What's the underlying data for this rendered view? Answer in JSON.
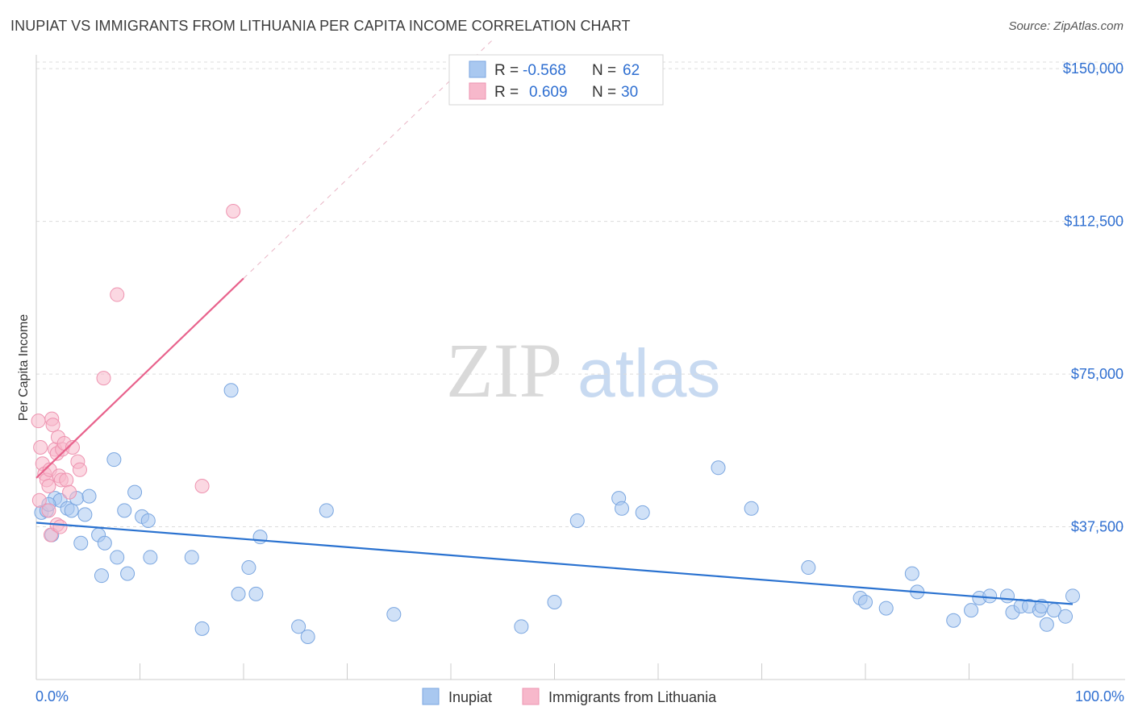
{
  "title": "INUPIAT VS IMMIGRANTS FROM LITHUANIA PER CAPITA INCOME CORRELATION CHART",
  "source": "Source: ZipAtlas.com",
  "watermark": {
    "zip": "ZIP",
    "atlas": "atlas"
  },
  "colors": {
    "inupiat_fill": "#a9c8f0",
    "inupiat_stroke": "#7aa6e0",
    "inupiat_line": "#2a72d0",
    "lithuania_fill": "#f7b8cb",
    "lithuania_stroke": "#ee93b0",
    "lithuania_line": "#e8628c",
    "axis_text": "#2f6fd1",
    "grid": "#dcdcdc"
  },
  "legend": {
    "rows": [
      {
        "r_label": "R =",
        "r_value": "-0.568",
        "n_label": "N =",
        "n_value": "62"
      },
      {
        "r_label": "R =",
        "r_value": "0.609",
        "n_label": "N =",
        "n_value": "30"
      }
    ]
  },
  "bottom_legend": {
    "series1": "Inupiat",
    "series2": "Immigrants from Lithuania"
  },
  "chart_data": {
    "type": "scatter",
    "title": "INUPIAT VS IMMIGRANTS FROM LITHUANIA PER CAPITA INCOME CORRELATION CHART",
    "xlabel": "",
    "ylabel": "Per Capita Income",
    "xlim": [
      0,
      100
    ],
    "ylim": [
      0,
      153000
    ],
    "x_tick_labels": [
      "0.0%",
      "100.0%"
    ],
    "y_ticks": [
      37500,
      75000,
      112500,
      150000
    ],
    "y_tick_labels": [
      "$37,500",
      "$75,000",
      "$112,500",
      "$150,000"
    ],
    "grid": true,
    "series": [
      {
        "name": "Inupiat",
        "trend": {
          "x0": 0,
          "y0": 38500,
          "x1": 100,
          "y1": 18500
        },
        "points": [
          [
            0.5,
            41000
          ],
          [
            1.0,
            41500
          ],
          [
            1.5,
            35500
          ],
          [
            1.8,
            44500
          ],
          [
            2.3,
            44000
          ],
          [
            3.0,
            42000
          ],
          [
            3.4,
            41500
          ],
          [
            3.9,
            44500
          ],
          [
            4.3,
            33500
          ],
          [
            4.7,
            40500
          ],
          [
            5.1,
            45000
          ],
          [
            6.0,
            35500
          ],
          [
            6.3,
            25500
          ],
          [
            6.6,
            33500
          ],
          [
            7.5,
            54000
          ],
          [
            7.8,
            30000
          ],
          [
            8.5,
            41500
          ],
          [
            8.8,
            26000
          ],
          [
            9.5,
            46000
          ],
          [
            10.2,
            40000
          ],
          [
            10.8,
            39000
          ],
          [
            11.0,
            30000
          ],
          [
            15.0,
            30000
          ],
          [
            16.0,
            12500
          ],
          [
            18.8,
            71000
          ],
          [
            19.5,
            21000
          ],
          [
            20.5,
            27500
          ],
          [
            21.2,
            21000
          ],
          [
            21.6,
            35000
          ],
          [
            25.3,
            13000
          ],
          [
            26.2,
            10500
          ],
          [
            28.0,
            41500
          ],
          [
            34.5,
            16000
          ],
          [
            46.8,
            13000
          ],
          [
            50.0,
            19000
          ],
          [
            52.2,
            39000
          ],
          [
            56.2,
            44500
          ],
          [
            56.5,
            42000
          ],
          [
            58.5,
            41000
          ],
          [
            65.8,
            52000
          ],
          [
            69.0,
            42000
          ],
          [
            74.5,
            27500
          ],
          [
            79.5,
            20000
          ],
          [
            80.0,
            19000
          ],
          [
            82.0,
            17500
          ],
          [
            84.5,
            26000
          ],
          [
            85.0,
            21500
          ],
          [
            88.5,
            14500
          ],
          [
            90.2,
            17000
          ],
          [
            91.0,
            20000
          ],
          [
            92.0,
            20500
          ],
          [
            93.7,
            20500
          ],
          [
            94.2,
            16500
          ],
          [
            95.0,
            18000
          ],
          [
            95.8,
            18000
          ],
          [
            96.8,
            17000
          ],
          [
            97.0,
            18000
          ],
          [
            97.5,
            13500
          ],
          [
            98.2,
            17000
          ],
          [
            99.3,
            15500
          ],
          [
            100.0,
            20500
          ],
          [
            1.2,
            43000
          ]
        ]
      },
      {
        "name": "Immigrants from Lithuania",
        "trend": {
          "x0": 0,
          "y0": 49500,
          "x1": 20,
          "y1": 98500
        },
        "trend_ext": {
          "x0": 20,
          "y0": 98500,
          "x1": 44,
          "y1": 157000
        },
        "points": [
          [
            0.2,
            63500
          ],
          [
            0.4,
            57000
          ],
          [
            0.6,
            53000
          ],
          [
            0.8,
            50500
          ],
          [
            1.0,
            49000
          ],
          [
            1.2,
            47500
          ],
          [
            1.3,
            51500
          ],
          [
            1.5,
            64000
          ],
          [
            1.6,
            62500
          ],
          [
            1.8,
            56500
          ],
          [
            2.0,
            55500
          ],
          [
            2.1,
            59500
          ],
          [
            2.2,
            50000
          ],
          [
            2.4,
            49000
          ],
          [
            2.5,
            56500
          ],
          [
            2.7,
            58000
          ],
          [
            2.9,
            49000
          ],
          [
            3.2,
            46000
          ],
          [
            3.5,
            57000
          ],
          [
            4.0,
            53500
          ],
          [
            0.3,
            44000
          ],
          [
            1.2,
            41500
          ],
          [
            1.4,
            35500
          ],
          [
            2.0,
            38000
          ],
          [
            2.3,
            37500
          ],
          [
            4.2,
            51500
          ],
          [
            6.5,
            74000
          ],
          [
            16.0,
            47500
          ],
          [
            7.8,
            94500
          ],
          [
            19.0,
            115000
          ]
        ]
      }
    ]
  }
}
